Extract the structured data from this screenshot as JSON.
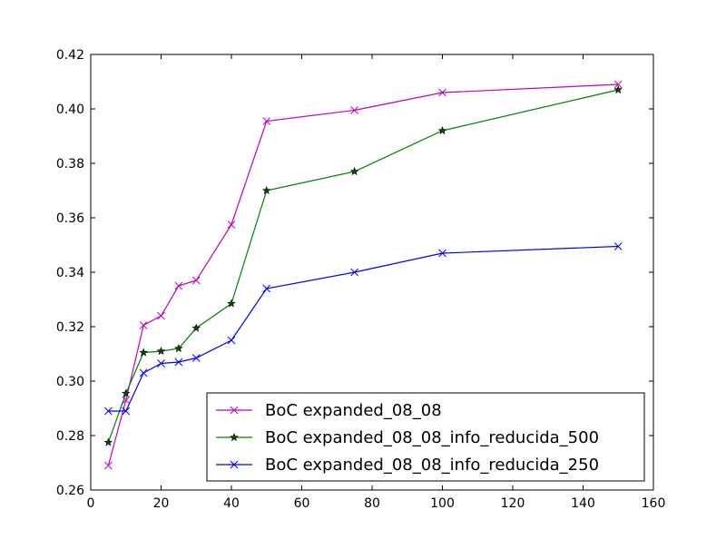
{
  "chart_data": {
    "type": "line",
    "title": "",
    "xlabel": "",
    "ylabel": "",
    "xlim": [
      0,
      160
    ],
    "ylim": [
      0.26,
      0.42
    ],
    "xticks": [
      0,
      20,
      40,
      60,
      80,
      100,
      120,
      140,
      160
    ],
    "yticks": [
      0.26,
      0.28,
      0.3,
      0.32,
      0.34,
      0.36,
      0.38,
      0.4,
      0.42
    ],
    "xtick_labels": [
      "0",
      "20",
      "40",
      "60",
      "80",
      "100",
      "120",
      "140",
      "160"
    ],
    "ytick_labels": [
      "0.26",
      "0.28",
      "0.30",
      "0.32",
      "0.34",
      "0.36",
      "0.38",
      "0.40",
      "0.42"
    ],
    "grid": false,
    "legend_position": "lower-right",
    "series": [
      {
        "name": "BoC expanded_08_08",
        "color": "#bf00bf",
        "marker": "x",
        "x": [
          5,
          10,
          15,
          20,
          25,
          30,
          40,
          50,
          75,
          100,
          150
        ],
        "y": [
          0.269,
          0.293,
          0.3205,
          0.324,
          0.335,
          0.337,
          0.3575,
          0.3955,
          0.3995,
          0.406,
          0.409
        ]
      },
      {
        "name": "BoC expanded_08_08_info_reducida_500",
        "color": "#008000",
        "marker": "star",
        "x": [
          5,
          10,
          15,
          20,
          25,
          30,
          40,
          50,
          75,
          100,
          150
        ],
        "y": [
          0.2775,
          0.2955,
          0.3105,
          0.311,
          0.312,
          0.3195,
          0.3285,
          0.37,
          0.377,
          0.392,
          0.407
        ]
      },
      {
        "name": "BoC expanded_08_08_info_reducida_250",
        "color": "#0000ff",
        "marker": "x",
        "x": [
          5,
          10,
          15,
          20,
          25,
          30,
          40,
          50,
          75,
          100,
          150
        ],
        "y": [
          0.289,
          0.289,
          0.303,
          0.3065,
          0.307,
          0.3085,
          0.315,
          0.334,
          0.34,
          0.347,
          0.3495
        ]
      }
    ]
  }
}
